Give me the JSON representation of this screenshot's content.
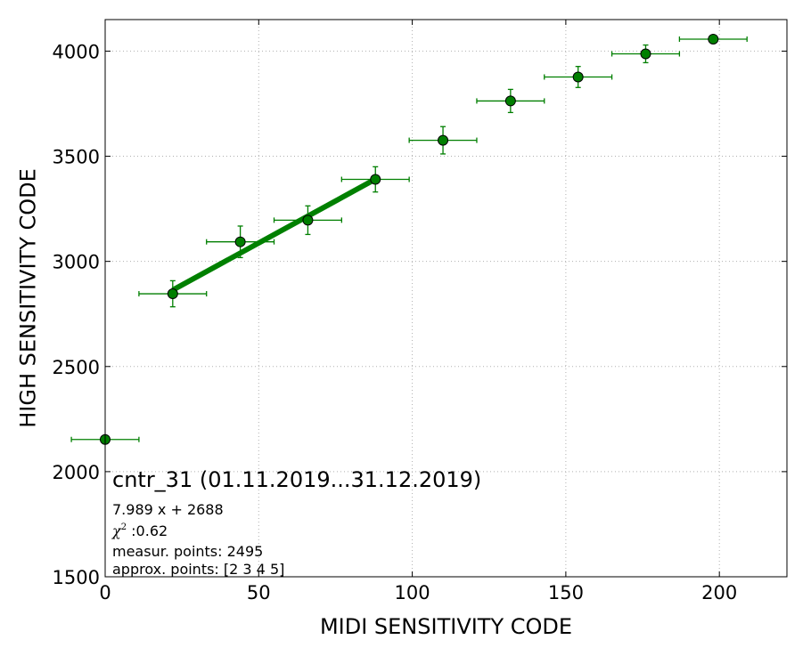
{
  "chart_data": {
    "type": "scatter",
    "title": "",
    "xlabel": "MIDI SENSITIVITY CODE",
    "ylabel": "HIGH SENSITIVITY CODE",
    "xlim": [
      0,
      222
    ],
    "ylim": [
      1500,
      4150
    ],
    "xticks": [
      0,
      50,
      100,
      150,
      200
    ],
    "yticks": [
      1500,
      2000,
      2500,
      3000,
      3500,
      4000
    ],
    "xtick_labels": [
      "0",
      "50",
      "100",
      "150",
      "200"
    ],
    "ytick_labels": [
      "1500",
      "2000",
      "2500",
      "3000",
      "3500",
      "4000"
    ],
    "grid": true,
    "colors": {
      "points": "#007f00",
      "errorbars": "#007f00",
      "fit_line": "#008000"
    },
    "points": [
      {
        "x": 0,
        "y": 2153,
        "xerr": 11,
        "yerr": 0
      },
      {
        "x": 22,
        "y": 2846,
        "xerr": 11,
        "yerr": 62
      },
      {
        "x": 44,
        "y": 3093,
        "xerr": 11,
        "yerr": 75
      },
      {
        "x": 66,
        "y": 3196,
        "xerr": 11,
        "yerr": 68
      },
      {
        "x": 88,
        "y": 3390,
        "xerr": 11,
        "yerr": 60
      },
      {
        "x": 110,
        "y": 3576,
        "xerr": 11,
        "yerr": 65
      },
      {
        "x": 132,
        "y": 3763,
        "xerr": 11,
        "yerr": 55
      },
      {
        "x": 154,
        "y": 3877,
        "xerr": 11,
        "yerr": 50
      },
      {
        "x": 176,
        "y": 3987,
        "xerr": 11,
        "yerr": 42
      },
      {
        "x": 198,
        "y": 4057,
        "xerr": 11,
        "yerr": 0
      }
    ],
    "fit": {
      "slope": 7.989,
      "intercept": 2688,
      "x_range": [
        22,
        88
      ]
    },
    "annotations": {
      "title": "cntr_31 (01.11.2019...31.12.2019)",
      "equation": "7.989 x + 2688",
      "chi_symbol": "χ",
      "chi_sup": "2",
      "chi_value": " :0.62",
      "measur_points": "measur. points: 2495",
      "approx_points": "approx. points: [2 3 4 5]"
    }
  }
}
